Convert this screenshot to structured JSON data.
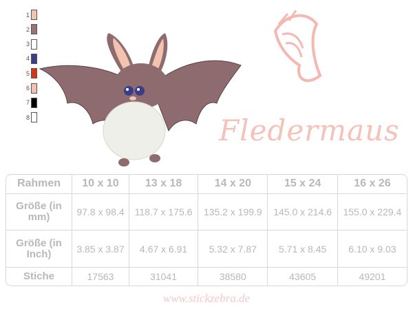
{
  "palette": [
    {
      "number": "1",
      "color": "#f2c4b0"
    },
    {
      "number": "2",
      "color": "#9a7474"
    },
    {
      "number": "3",
      "color": "#ffffff"
    },
    {
      "number": "4",
      "color": "#3a3d8a"
    },
    {
      "number": "5",
      "color": "#d83418"
    },
    {
      "number": "6",
      "color": "#f2c0ac"
    },
    {
      "number": "7",
      "color": "#000000"
    },
    {
      "number": "8",
      "color": "#ffffff"
    }
  ],
  "title": "Fledermaus",
  "website": "www.stickzebra.de",
  "table": {
    "headers": [
      "Rahmen",
      "10 x 10",
      "13 x 18",
      "14 x 20",
      "15 x 24",
      "16 x 26"
    ],
    "rows": [
      {
        "label": "Größe (in mm)",
        "cells": [
          "97.8 x 98.4",
          "118.7 x 175.6",
          "135.2 x 199.9",
          "145.0 x 214.6",
          "155.0 x 229.4"
        ]
      },
      {
        "label": "Größe (in Inch)",
        "cells": [
          "3.85 x 3.87",
          "4.67 x 6.91",
          "5.32 x 7.87",
          "5.71 x 8.45",
          "6.10 x 9.03"
        ]
      },
      {
        "label": "Stiche",
        "cells": [
          "17563",
          "31041",
          "38580",
          "43605",
          "49201"
        ]
      }
    ]
  }
}
